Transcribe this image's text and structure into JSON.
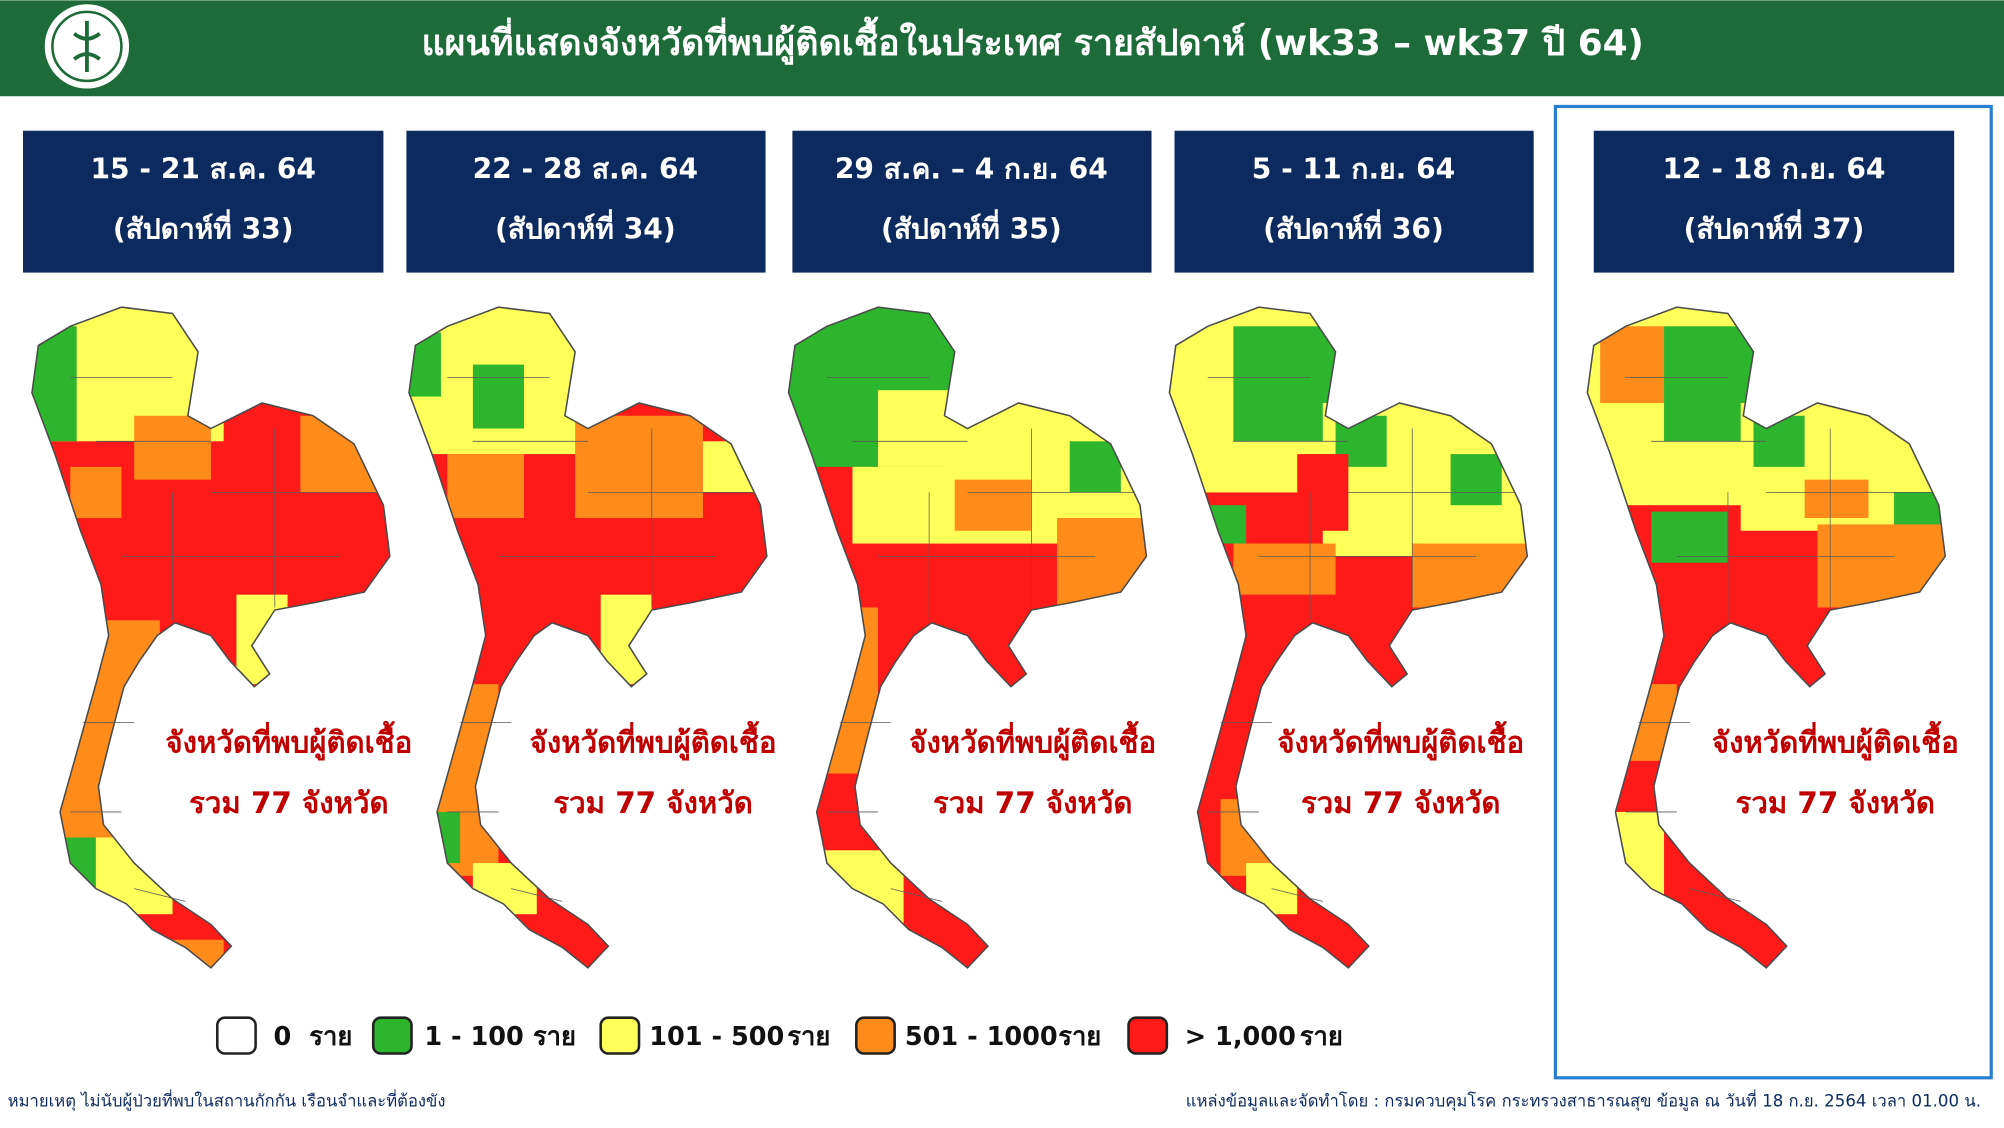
{
  "header": {
    "title": "แผนที่แสดงจังหวัดที่พบผู้ติดเชื้อในประเทศ รายสัปดาห์ (wk33 – wk37 ปี 64)"
  },
  "panels": [
    {
      "date": "15 - 21 ส.ค. 64",
      "week": "(สัปดาห์ที่ 33)",
      "note": "จังหวัดที่พบผู้ติดเชื้อ",
      "total": "รวม 77 จังหวัด"
    },
    {
      "date": "22 - 28 ส.ค. 64",
      "week": "(สัปดาห์ที่ 34)",
      "note": "จังหวัดที่พบผู้ติดเชื้อ",
      "total": "รวม 77 จังหวัด"
    },
    {
      "date": "29 ส.ค. – 4 ก.ย. 64",
      "week": "(สัปดาห์ที่ 35)",
      "note": "จังหวัดที่พบผู้ติดเชื้อ",
      "total": "รวม 77 จังหวัด"
    },
    {
      "date": "5 - 11 ก.ย. 64",
      "week": "(สัปดาห์ที่ 36)",
      "note": "จังหวัดที่พบผู้ติดเชื้อ",
      "total": "รวม 77 จังหวัด"
    },
    {
      "date": "12 - 18 ก.ย. 64",
      "week": "(สัปดาห์ที่ 37)",
      "note": "จังหวัดที่พบผู้ติดเชื้อ",
      "total": "รวม 77 จังหวัด"
    }
  ],
  "legend": [
    {
      "label": "0",
      "unit": "ราย",
      "color": "#ffffff"
    },
    {
      "label": "1 - 100",
      "unit": "ราย",
      "color": "#2db52d"
    },
    {
      "label": "101 - 500",
      "unit": "ราย",
      "color": "#ffff5a"
    },
    {
      "label": "501 - 1000",
      "unit": "ราย",
      "color": "#ff8c1a"
    },
    {
      "label": "> 1,000",
      "unit": "ราย",
      "color": "#ff1a1a"
    }
  ],
  "footer": {
    "note": "หมายเหตุ ไม่นับผู้ป่วยที่พบในสถานกักกัน เรือนจำและที่ต้องขัง",
    "source": "แหล่งข้อมูลและจัดทำโดย : กรมควบคุมโรค กระทรวงสาธารณสุข ข้อมูล ณ วันที่ 18 ก.ย. 2564 เวลา 01.00 น."
  }
}
